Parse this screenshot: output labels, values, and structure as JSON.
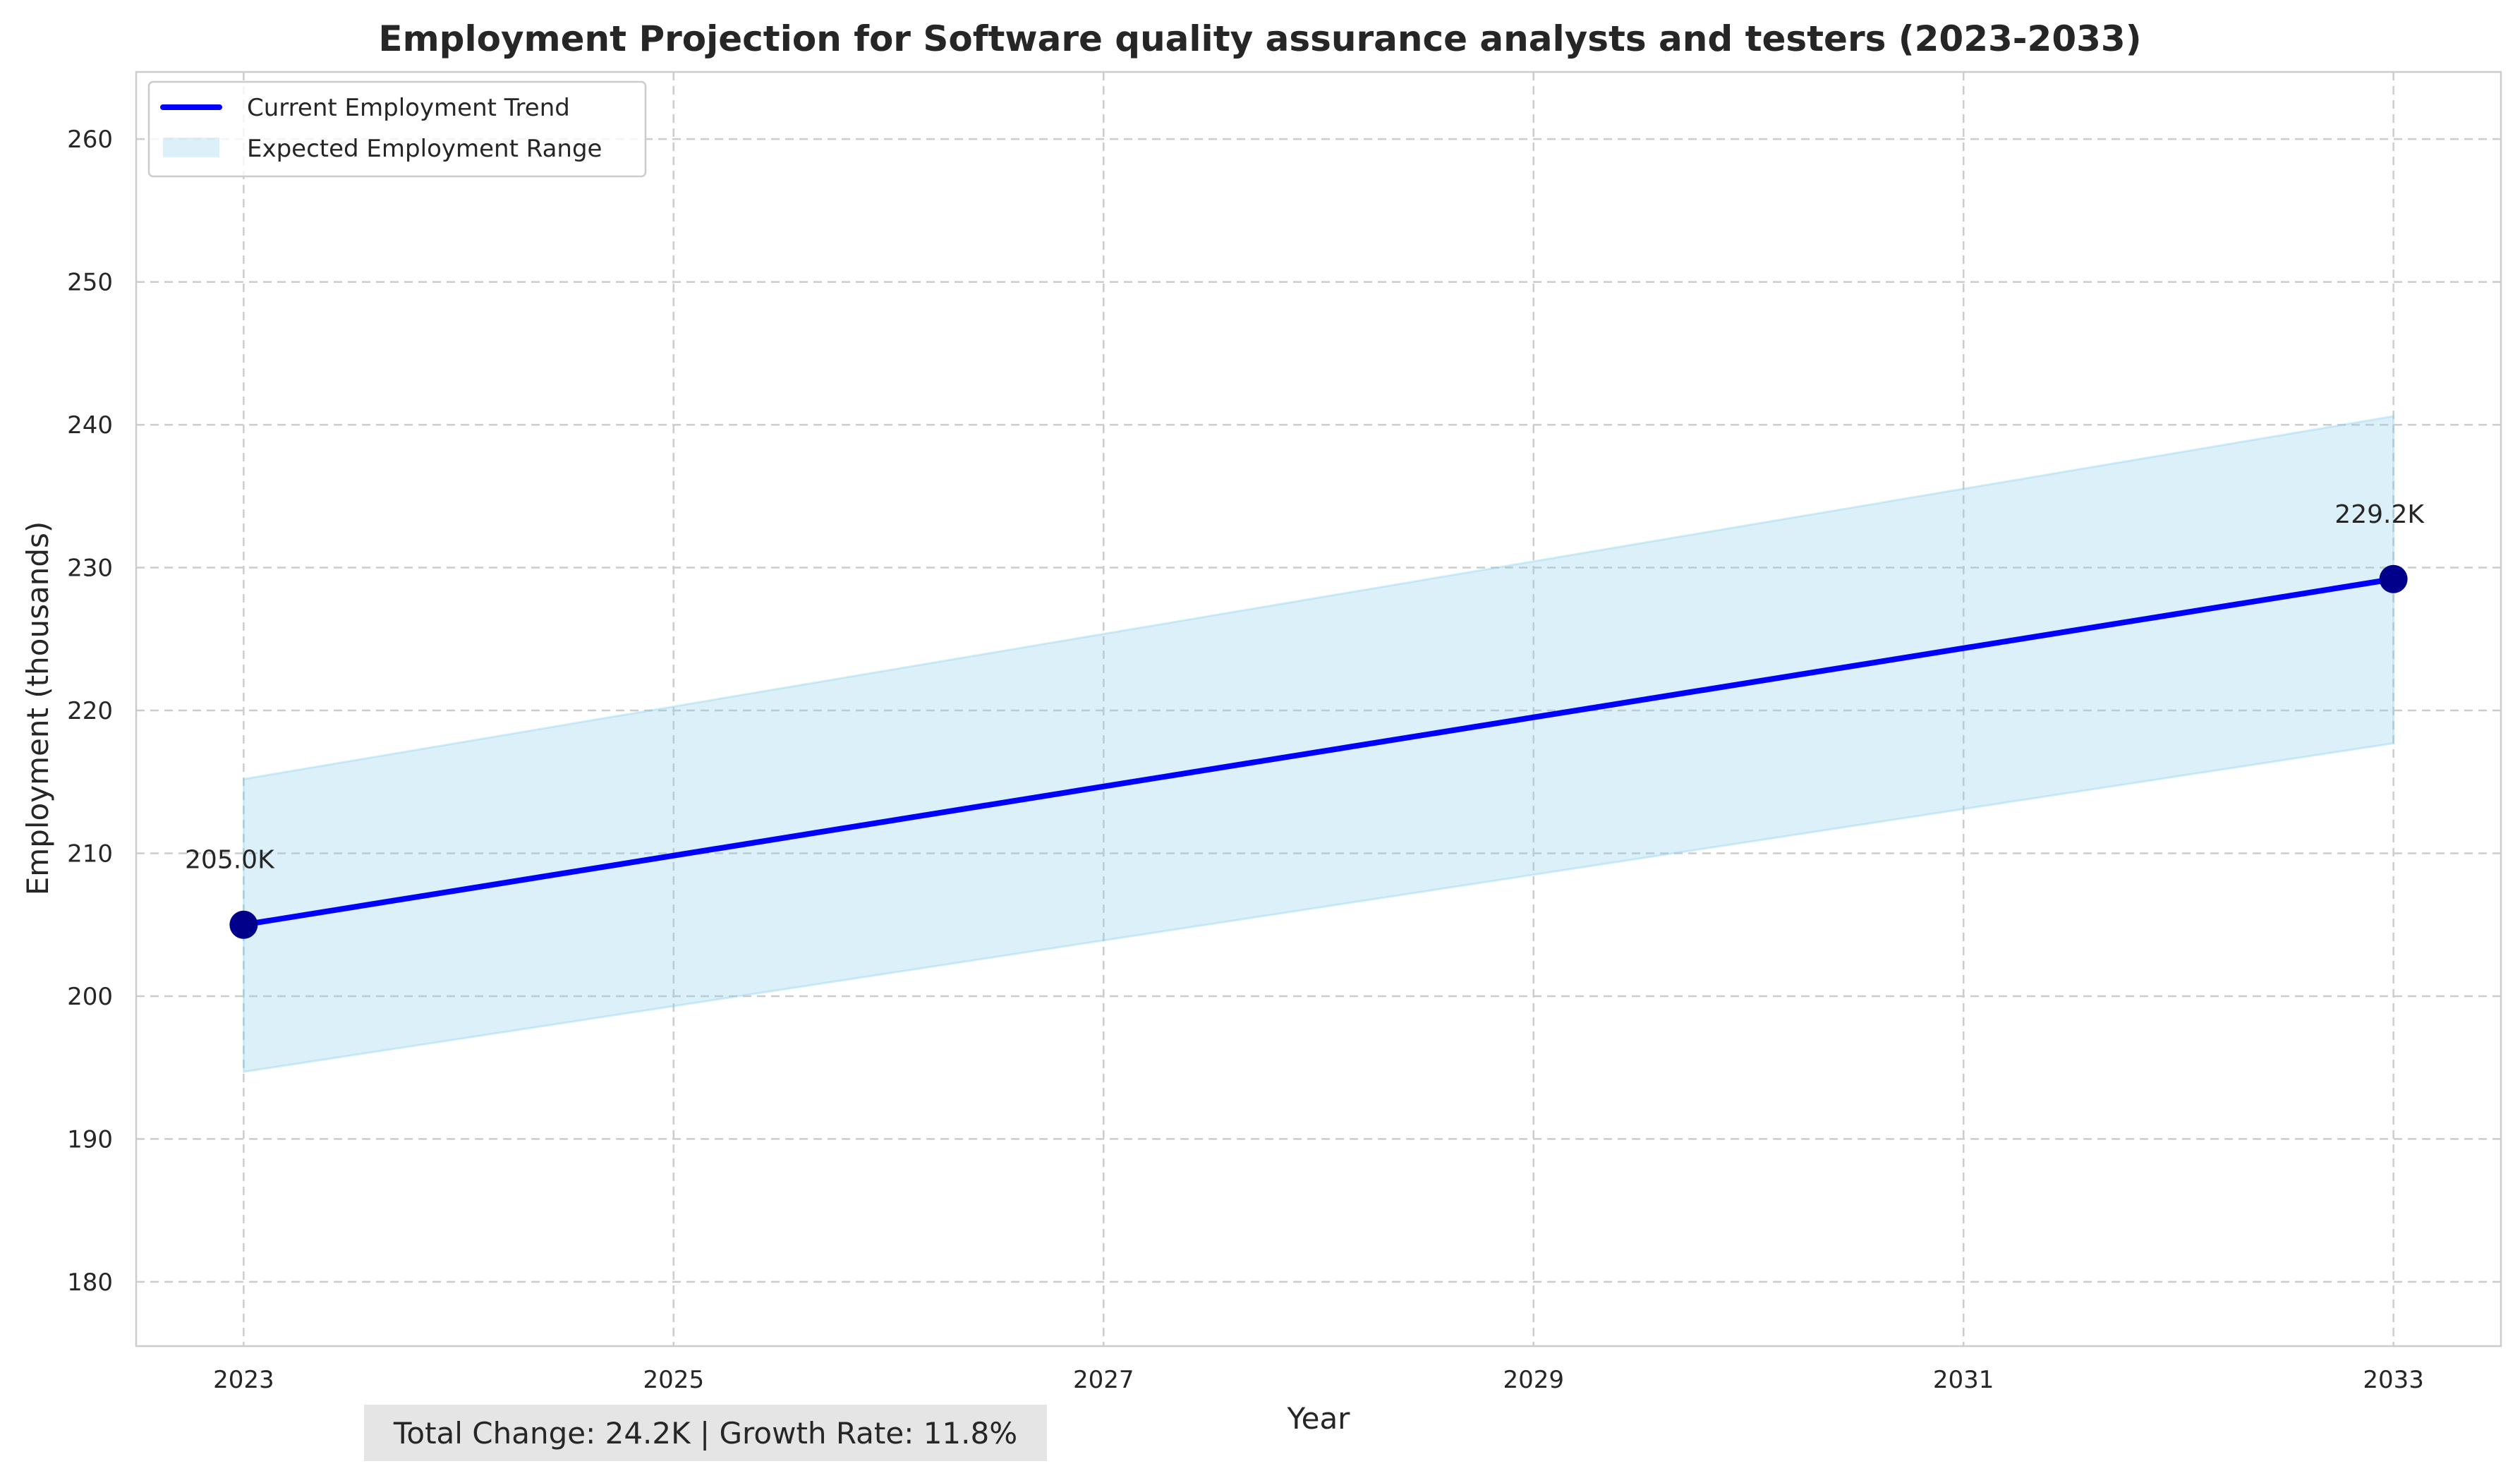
{
  "chart_data": {
    "type": "line",
    "title": "Employment Projection for Software quality assurance analysts and testers (2023-2033)",
    "xlabel": "Year",
    "ylabel": "Employment (thousands)",
    "x": [
      2023,
      2033
    ],
    "x_ticks": [
      "2023",
      "2025",
      "2027",
      "2029",
      "2031",
      "2033"
    ],
    "y_ticks": [
      "180",
      "190",
      "200",
      "210",
      "220",
      "230",
      "240",
      "250",
      "260"
    ],
    "xlim": [
      2022.5,
      2033.5
    ],
    "ylim": [
      175.5,
      264.7
    ],
    "grid": true,
    "legend_position": "top-left",
    "series": [
      {
        "name": "Current Employment Trend",
        "color": "#0000ff",
        "marker_color": "#00008b",
        "values": [
          205.0,
          229.2
        ]
      }
    ],
    "range": {
      "name": "Expected Employment Range",
      "color": "#87ceeb",
      "lower": [
        194.7,
        217.7
      ],
      "upper": [
        215.2,
        240.6
      ]
    },
    "annotations": [
      "205.0K",
      "229.2K"
    ],
    "summary": "Total Change: 24.2K | Growth Rate: 11.8%"
  }
}
